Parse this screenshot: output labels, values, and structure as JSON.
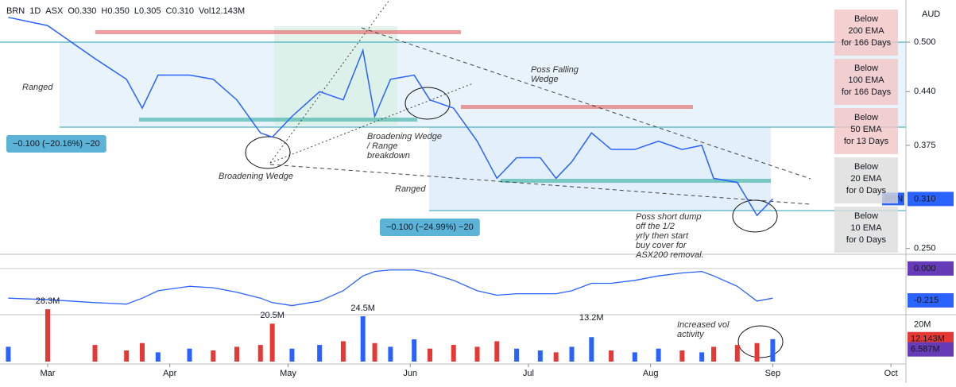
{
  "chart_data": {
    "type": "line",
    "header": {
      "symbol": "BRN",
      "interval": "1D",
      "exchange": "ASX",
      "open": "O0.330",
      "high": "H0.350",
      "low": "L0.305",
      "close": "C0.310",
      "volume": "Vol12.143M"
    },
    "currency": "AUD",
    "x": [
      50,
      60,
      72,
      80,
      84,
      88,
      96,
      102,
      108,
      114,
      117,
      122,
      129,
      135,
      140,
      143,
      147,
      153,
      157,
      163,
      169,
      174,
      179,
      185,
      189,
      193,
      198,
      203,
      209,
      215,
      221,
      226,
      229,
      235,
      240,
      244
    ],
    "xlim": [
      47.9,
      277.8
    ],
    "xticks": [
      {
        "value": 60,
        "label": "Mar"
      },
      {
        "value": 91,
        "label": "Apr"
      },
      {
        "value": 121,
        "label": "May"
      },
      {
        "value": 152,
        "label": "Jun"
      },
      {
        "value": 182,
        "label": "Jul"
      },
      {
        "value": 213,
        "label": "Aug"
      },
      {
        "value": 244,
        "label": "Sep"
      },
      {
        "value": 274,
        "label": "Oct"
      }
    ],
    "series": [
      {
        "name": "BRN",
        "color": "#2962ff",
        "values": [
          0.53,
          0.52,
          0.48,
          0.455,
          0.42,
          0.46,
          0.46,
          0.455,
          0.43,
          0.39,
          0.385,
          0.41,
          0.44,
          0.43,
          0.49,
          0.41,
          0.455,
          0.46,
          0.43,
          0.42,
          0.38,
          0.335,
          0.36,
          0.36,
          0.335,
          0.355,
          0.39,
          0.37,
          0.37,
          0.38,
          0.37,
          0.375,
          0.335,
          0.33,
          0.29,
          0.31
        ]
      }
    ],
    "ylim": [
      0.243,
      0.551
    ],
    "yticks": [
      {
        "value": 0.5,
        "label": "0.500"
      },
      {
        "value": 0.44,
        "label": "0.440"
      },
      {
        "value": 0.375,
        "label": "0.375"
      },
      {
        "value": 0.25,
        "label": "0.250"
      }
    ],
    "last_price": {
      "value": 0.31,
      "label": "0.310"
    },
    "macd": {
      "color": "#2962ff",
      "values": [
        -0.2,
        -0.21,
        -0.23,
        -0.24,
        -0.2,
        -0.15,
        -0.12,
        -0.13,
        -0.16,
        -0.2,
        -0.23,
        -0.25,
        -0.22,
        -0.15,
        -0.05,
        -0.02,
        -0.01,
        -0.01,
        -0.03,
        -0.08,
        -0.15,
        -0.18,
        -0.17,
        -0.17,
        -0.17,
        -0.15,
        -0.1,
        -0.1,
        -0.08,
        -0.05,
        -0.03,
        -0.02,
        -0.05,
        -0.12,
        -0.22,
        -0.2
      ],
      "ylim": [
        -0.29,
        0.085
      ],
      "zero": {
        "value": 0,
        "label": "0.000"
      },
      "last": {
        "value": -0.215,
        "label": "-0.215"
      }
    },
    "volume": {
      "up_color": "#2962ff",
      "down_color": "#e53935",
      "values": [
        8,
        28.3,
        9,
        6,
        10,
        5,
        7,
        6,
        8,
        9,
        20.5,
        7,
        9,
        11,
        24.5,
        10,
        8,
        12,
        7,
        9,
        8,
        11,
        7,
        6,
        5,
        8,
        13.2,
        6,
        5,
        7,
        6,
        5,
        8,
        9,
        10,
        12.143
      ],
      "value_labels": {
        "1": "28.3M",
        "10": "20.5M",
        "14": "24.5M",
        "26": "13.2M"
      },
      "ylim": [
        0,
        24.5
      ],
      "yticks": [
        {
          "value": 20,
          "label": "20M"
        }
      ],
      "last": {
        "value": 12.143,
        "label": "12.143M"
      },
      "avg": {
        "value": 6.587,
        "label": "6.587M"
      }
    },
    "annotations": [
      "Ranged",
      "Broadening Wedge",
      "Broadening Wedge / Range breakdown",
      "Poss Falling Wedge",
      "Ranged",
      "Poss short dump off the 1/2 yrly then start buy cover for ASX200 removal.",
      "Increased vol activity"
    ],
    "measures": [
      "−0.100 (−20.16%) −20",
      "−0.100 (−24.99%) −20"
    ],
    "ema_boxes": [
      "Below 200 EMA for 166 Days",
      "Below 100 EMA for 166 Days",
      "Below 50 EMA for 13 Days",
      "Below 20 EMA for 0 Days",
      "Below 10 EMA for 0 Days"
    ]
  }
}
